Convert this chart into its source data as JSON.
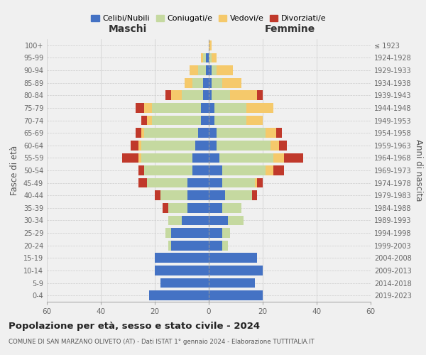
{
  "age_groups": [
    "0-4",
    "5-9",
    "10-14",
    "15-19",
    "20-24",
    "25-29",
    "30-34",
    "35-39",
    "40-44",
    "45-49",
    "50-54",
    "55-59",
    "60-64",
    "65-69",
    "70-74",
    "75-79",
    "80-84",
    "85-89",
    "90-94",
    "95-99",
    "100+"
  ],
  "birth_years": [
    "2019-2023",
    "2014-2018",
    "2009-2013",
    "2004-2008",
    "1999-2003",
    "1994-1998",
    "1989-1993",
    "1984-1988",
    "1979-1983",
    "1974-1978",
    "1969-1973",
    "1964-1968",
    "1959-1963",
    "1954-1958",
    "1949-1953",
    "1944-1948",
    "1939-1943",
    "1934-1938",
    "1929-1933",
    "1924-1928",
    "≤ 1923"
  ],
  "maschi": {
    "celibi": [
      22,
      18,
      20,
      20,
      14,
      14,
      10,
      8,
      8,
      8,
      6,
      6,
      5,
      4,
      3,
      3,
      2,
      2,
      1,
      1,
      0
    ],
    "coniugati": [
      0,
      0,
      0,
      0,
      1,
      2,
      5,
      7,
      10,
      15,
      18,
      19,
      20,
      20,
      18,
      18,
      8,
      4,
      3,
      1,
      0
    ],
    "vedovi": [
      0,
      0,
      0,
      0,
      0,
      0,
      0,
      0,
      0,
      0,
      0,
      1,
      1,
      1,
      2,
      3,
      4,
      3,
      3,
      1,
      0
    ],
    "divorziati": [
      0,
      0,
      0,
      0,
      0,
      0,
      0,
      2,
      2,
      3,
      2,
      6,
      3,
      2,
      2,
      3,
      2,
      0,
      0,
      0,
      0
    ]
  },
  "femmine": {
    "nubili": [
      20,
      17,
      20,
      18,
      5,
      5,
      7,
      5,
      6,
      5,
      5,
      4,
      3,
      3,
      2,
      2,
      1,
      1,
      1,
      0,
      0
    ],
    "coniugate": [
      0,
      0,
      0,
      0,
      2,
      3,
      6,
      7,
      10,
      12,
      16,
      20,
      20,
      18,
      12,
      12,
      7,
      4,
      2,
      1,
      0
    ],
    "vedove": [
      0,
      0,
      0,
      0,
      0,
      0,
      0,
      0,
      0,
      1,
      3,
      4,
      3,
      4,
      6,
      10,
      10,
      7,
      6,
      2,
      1
    ],
    "divorziate": [
      0,
      0,
      0,
      0,
      0,
      0,
      0,
      0,
      2,
      2,
      4,
      7,
      3,
      2,
      0,
      0,
      2,
      0,
      0,
      0,
      0
    ]
  },
  "colors": {
    "celibi_nubili": "#4472c4",
    "coniugati": "#c5d9a0",
    "vedovi": "#f5c96b",
    "divorziati": "#c0392b"
  },
  "xlim": 60,
  "title_main": "Popolazione per età, sesso e stato civile - 2024",
  "title_sub": "COMUNE DI SAN MARZANO OLIVETO (AT) - Dati ISTAT 1° gennaio 2024 - Elaborazione TUTTITALIA.IT",
  "ylabel_left": "Fasce di età",
  "ylabel_right": "Anni di nascita",
  "label_maschi": "Maschi",
  "label_femmine": "Femmine",
  "legend_labels": [
    "Celibi/Nubili",
    "Coniugati/e",
    "Vedovi/e",
    "Divorziati/e"
  ],
  "bg_color": "#f0f0f0",
  "grid_color": "#cccccc"
}
